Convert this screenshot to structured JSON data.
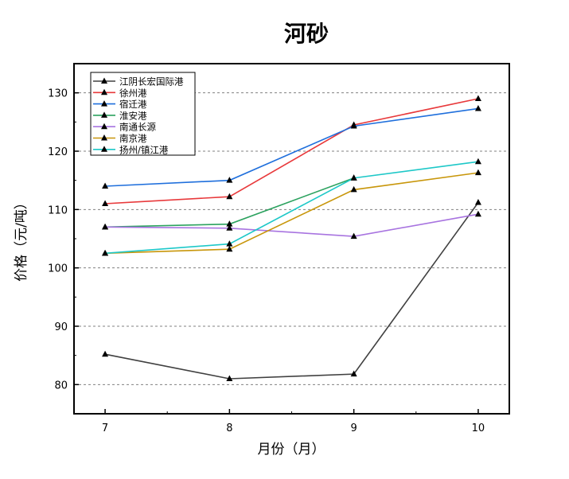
{
  "chart_data": {
    "type": "line",
    "title": "河砂",
    "xlabel": "月份（月）",
    "ylabel": "价格（元/吨）",
    "x": [
      7,
      8,
      9,
      10
    ],
    "xticks": [
      "7",
      "8",
      "9",
      "10"
    ],
    "yticks": [
      "80",
      "90",
      "100",
      "110",
      "120",
      "130"
    ],
    "xlim": [
      6.75,
      10.25
    ],
    "ylim": [
      75,
      135
    ],
    "grid": "horizontal-dashed",
    "legend": "top-left",
    "marker": "triangle",
    "series": [
      {
        "name": "江阴长宏国际港",
        "color": "#404040",
        "values": [
          85.2,
          81.0,
          81.8,
          111.2
        ]
      },
      {
        "name": "徐州港",
        "color": "#e8393b",
        "values": [
          111.0,
          112.2,
          124.5,
          129.0
        ]
      },
      {
        "name": "宿迁港",
        "color": "#1f6fdc",
        "values": [
          114.0,
          115.0,
          124.3,
          127.3
        ]
      },
      {
        "name": "淮安港",
        "color": "#2ca25f",
        "values": [
          107.0,
          107.5,
          115.4,
          null
        ]
      },
      {
        "name": "南通长源",
        "color": "#a874e0",
        "values": [
          107.0,
          106.8,
          105.4,
          109.2
        ]
      },
      {
        "name": "南京港",
        "color": "#c8960a",
        "values": [
          102.5,
          103.2,
          113.4,
          116.3
        ]
      },
      {
        "name": "扬州/镇江港",
        "color": "#1ec8c8",
        "values": [
          102.5,
          104.1,
          115.4,
          118.2
        ]
      }
    ]
  }
}
